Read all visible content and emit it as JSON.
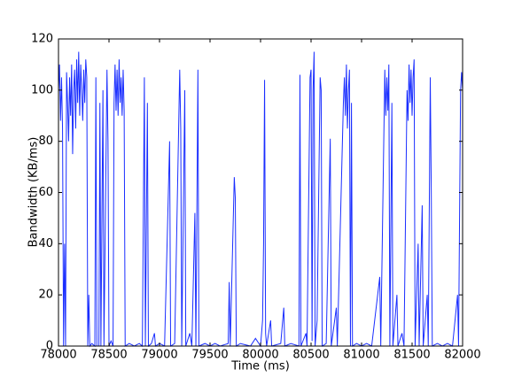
{
  "chart_data": {
    "type": "line",
    "x_label": "Time (ms)",
    "y_label": "Bandwidth (KB/ms)",
    "xlim": [
      78000,
      82000
    ],
    "ylim": [
      0,
      120
    ],
    "xticks": [
      78000,
      78500,
      79000,
      79500,
      80000,
      80500,
      81000,
      81500,
      82000
    ],
    "yticks": [
      0,
      20,
      40,
      60,
      80,
      100,
      120
    ],
    "x": [
      78000,
      78010,
      78020,
      78030,
      78040,
      78050,
      78060,
      78070,
      78080,
      78090,
      78100,
      78110,
      78120,
      78130,
      78140,
      78150,
      78160,
      78170,
      78180,
      78190,
      78200,
      78210,
      78220,
      78230,
      78240,
      78250,
      78260,
      78270,
      78280,
      78290,
      78300,
      78310,
      78330,
      78360,
      78370,
      78380,
      78400,
      78410,
      78420,
      78440,
      78450,
      78480,
      78490,
      78500,
      78520,
      78540,
      78550,
      78560,
      78570,
      78580,
      78590,
      78600,
      78610,
      78620,
      78630,
      78640,
      78650,
      78660,
      78700,
      78750,
      78800,
      78830,
      78850,
      78860,
      78880,
      78890,
      78920,
      78950,
      78960,
      79000,
      79050,
      79100,
      79110,
      79150,
      79200,
      79210,
      79220,
      79250,
      79260,
      79300,
      79320,
      79350,
      79360,
      79380,
      79390,
      79450,
      79500,
      79550,
      79600,
      79680,
      79690,
      79700,
      79740,
      79750,
      79760,
      79800,
      79900,
      79950,
      80000,
      80020,
      80030,
      80040,
      80050,
      80060,
      80100,
      80110,
      80200,
      80230,
      80240,
      80300,
      80380,
      80390,
      80400,
      80450,
      80460,
      80490,
      80500,
      80510,
      80520,
      80530,
      80540,
      80560,
      80590,
      80600,
      80610,
      80650,
      80690,
      80700,
      80750,
      80760,
      80820,
      80830,
      80840,
      80850,
      80860,
      80870,
      80880,
      80890,
      80900,
      80910,
      80950,
      81000,
      81050,
      81100,
      81180,
      81190,
      81230,
      81240,
      81250,
      81260,
      81270,
      81280,
      81300,
      81310,
      81350,
      81360,
      81400,
      81420,
      81450,
      81460,
      81470,
      81480,
      81490,
      81500,
      81510,
      81520,
      81530,
      81560,
      81570,
      81600,
      81610,
      81650,
      81660,
      81680,
      81690,
      81700,
      81750,
      81800,
      81850,
      81900,
      81950,
      81960,
      81980,
      81990,
      82000
    ],
    "series": [
      {
        "name": "bandwidth",
        "color": "#1a2eff",
        "values": [
          100,
          110,
          88,
          105,
          85,
          0,
          40,
          0,
          107,
          95,
          80,
          105,
          90,
          110,
          75,
          100,
          108,
          85,
          112,
          95,
          115,
          90,
          110,
          100,
          88,
          108,
          95,
          112,
          105,
          0,
          20,
          0,
          1,
          0,
          105,
          0,
          0,
          95,
          0,
          100,
          0,
          108,
          80,
          0,
          2,
          0,
          95,
          110,
          92,
          108,
          90,
          112,
          95,
          105,
          90,
          108,
          92,
          0,
          1,
          0,
          1,
          0,
          105,
          0,
          95,
          0,
          1,
          5,
          0,
          1,
          0,
          80,
          0,
          1,
          108,
          85,
          0,
          100,
          0,
          5,
          0,
          52,
          0,
          108,
          0,
          1,
          0,
          1,
          0,
          1,
          25,
          0,
          66,
          58,
          0,
          1,
          0,
          3,
          0,
          10,
          40,
          104,
          5,
          0,
          10,
          0,
          1,
          15,
          0,
          1,
          0,
          106,
          0,
          5,
          0,
          105,
          108,
          2,
          100,
          115,
          0,
          10,
          105,
          100,
          0,
          1,
          81,
          0,
          15,
          0,
          95,
          105,
          90,
          110,
          85,
          100,
          108,
          0,
          95,
          0,
          1,
          0,
          1,
          0,
          27,
          0,
          108,
          90,
          105,
          92,
          110,
          0,
          95,
          0,
          20,
          0,
          5,
          0,
          100,
          88,
          110,
          95,
          108,
          90,
          105,
          112,
          0,
          40,
          0,
          55,
          0,
          20,
          0,
          105,
          60,
          0,
          1,
          0,
          1,
          0,
          20,
          0,
          100,
          107,
          100
        ]
      }
    ]
  }
}
